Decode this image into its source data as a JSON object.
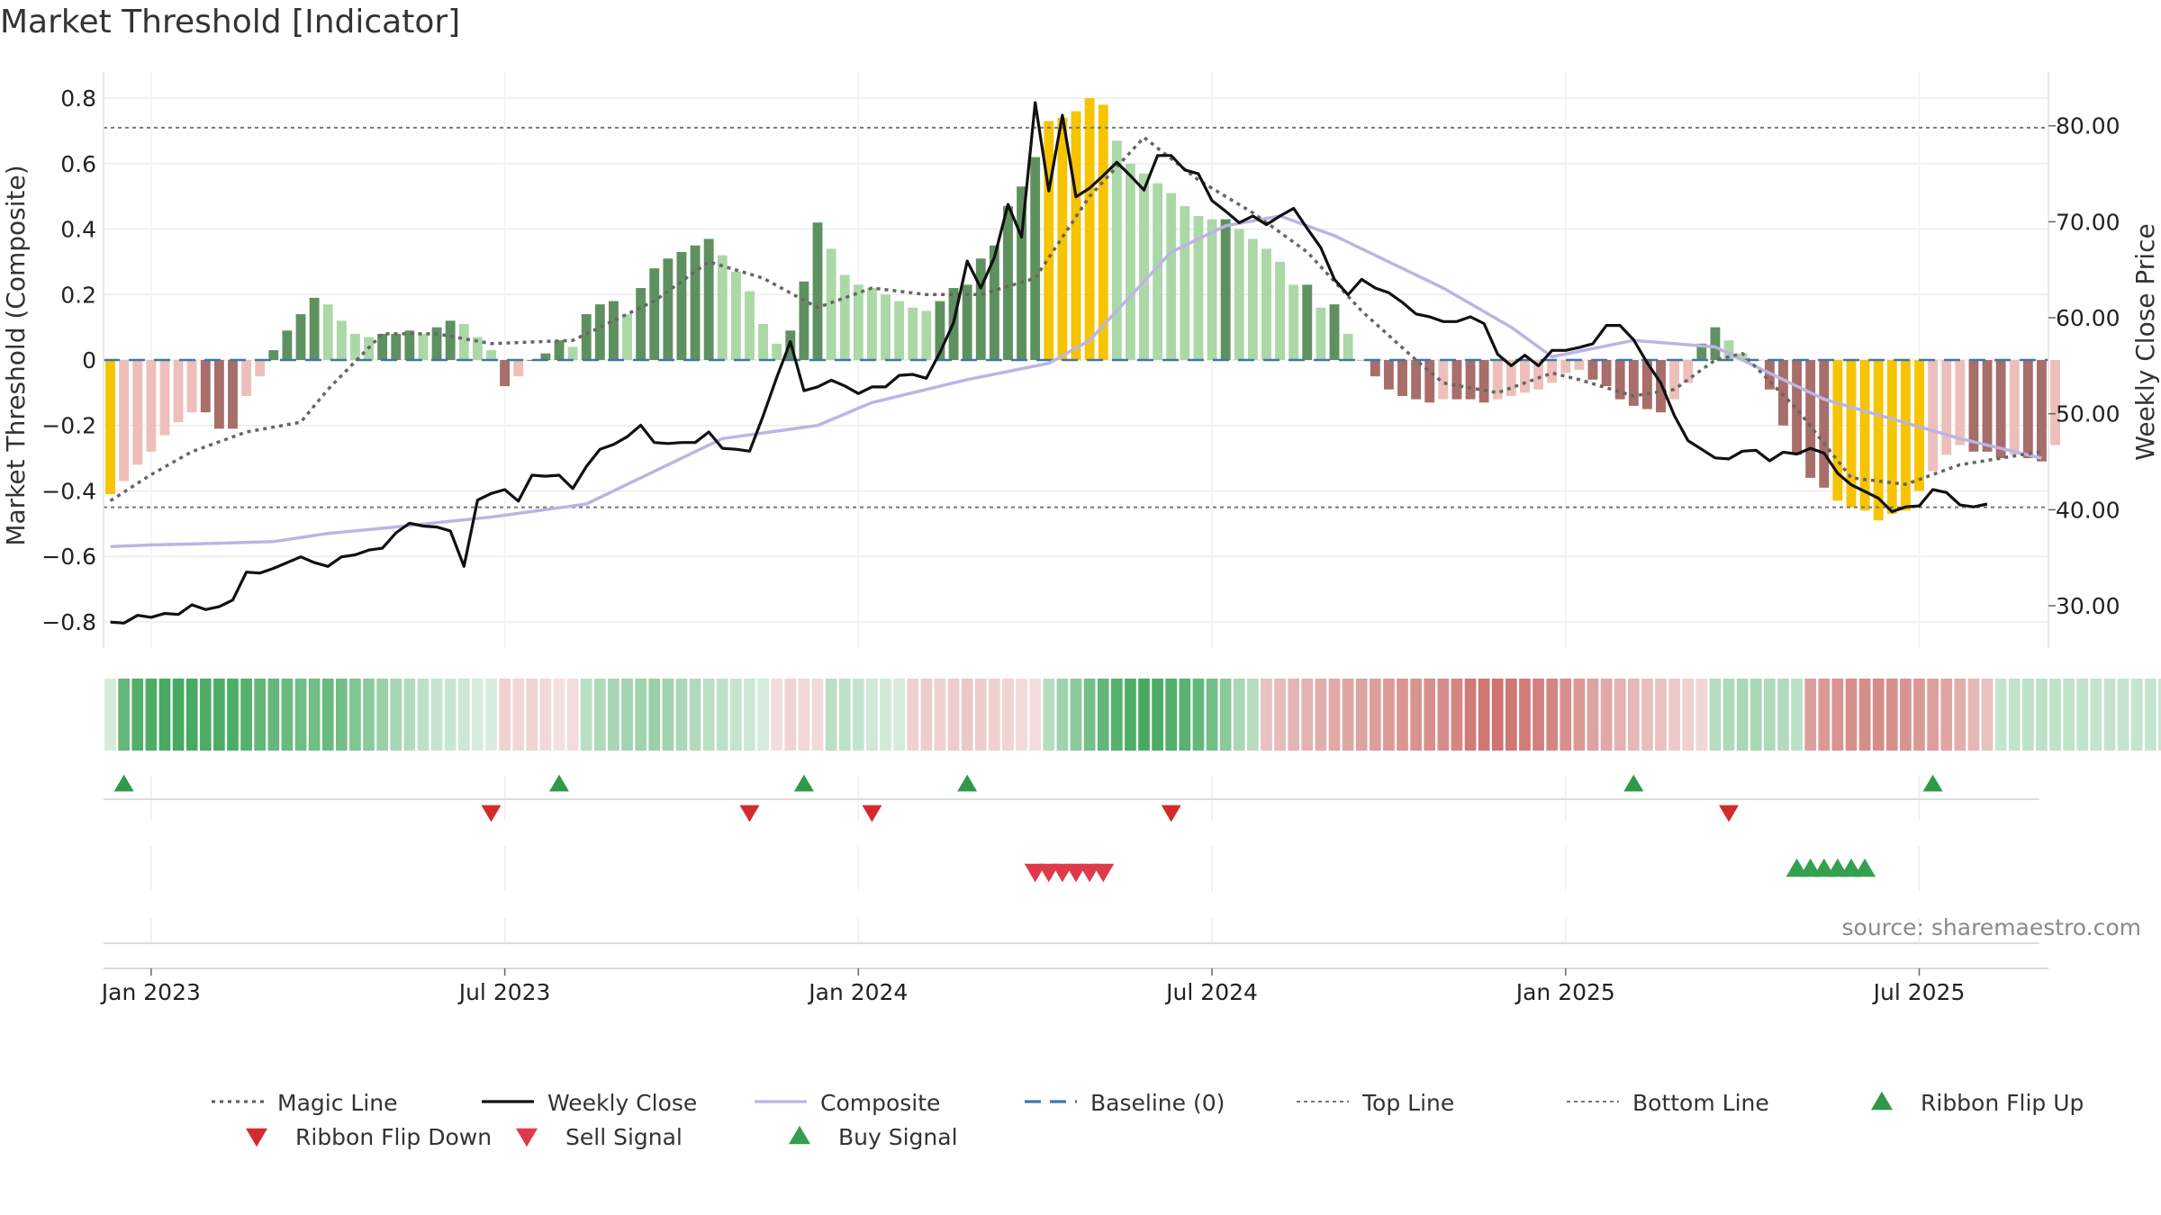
{
  "title": "Market Threshold [Indicator]",
  "source_text": "source: sharemaestro.com",
  "colors": {
    "bull_strong": "#5f9160",
    "bull_weak": "#acd8a7",
    "bear_strong": "#a86e6a",
    "bear_weak": "#eebfba",
    "extreme": "#f6c400",
    "magic": "#666666",
    "close": "#111111",
    "composite": "#bbb5e4",
    "baseline": "#3d78a8",
    "threshold": "#777777",
    "up_marker": "#2e9a48",
    "down_marker": "#d32b2b",
    "sell_marker": "#df3a4a",
    "buy_marker": "#34a04f"
  },
  "chart_data": {
    "type": "bar",
    "title": "Market Threshold [Indicator]",
    "ylabel_left": "Market Threshold (Composite)",
    "ylabel_right": "Weekly Close Price",
    "ylim_left": [
      -0.88,
      0.88
    ],
    "ylim_right": [
      25.6,
      85.6
    ],
    "left_ticks": [
      "0.8",
      "0.6",
      "0.4",
      "0.2",
      "0",
      "−0.2",
      "−0.4",
      "−0.6",
      "−0.8"
    ],
    "left_tick_values": [
      0.8,
      0.6,
      0.4,
      0.2,
      0,
      -0.2,
      -0.4,
      -0.6,
      -0.8
    ],
    "right_ticks": [
      "80.00",
      "70.00",
      "60.00",
      "50.00",
      "40.00",
      "30.00"
    ],
    "right_tick_values": [
      80,
      70,
      60,
      50,
      40,
      30
    ],
    "x_ticks": [
      "Jan 2023",
      "Jul 2023",
      "Jan 2024",
      "Jul 2024",
      "Jan 2025",
      "Jul 2025"
    ],
    "x_tick_weeks": [
      3,
      29,
      55,
      81,
      107,
      133
    ],
    "n_weeks": 143,
    "top_line": 0.71,
    "bottom_line": -0.45,
    "baseline": 0,
    "composite_weeks": [
      0,
      3,
      8,
      12,
      16,
      21,
      28,
      35,
      45,
      52,
      56,
      63,
      69,
      72,
      78,
      82,
      86,
      90,
      94,
      98,
      103,
      106,
      112,
      118,
      121,
      126,
      136,
      142
    ],
    "composite_values": [
      -0.57,
      -0.565,
      -0.56,
      -0.555,
      -0.53,
      -0.51,
      -0.48,
      -0.44,
      -0.24,
      -0.2,
      -0.13,
      -0.06,
      -0.01,
      0.06,
      0.33,
      0.41,
      0.44,
      0.38,
      0.3,
      0.22,
      0.1,
      0.01,
      0.06,
      0.04,
      -0.02,
      -0.12,
      -0.24,
      -0.3
    ],
    "magic_weeks": [
      0,
      3,
      6,
      10,
      14,
      16,
      20,
      24,
      28,
      34,
      40,
      44,
      48,
      52,
      56,
      60,
      64,
      68,
      72,
      76,
      80,
      84,
      88,
      92,
      96,
      98,
      102,
      106,
      108,
      112,
      115,
      118,
      120,
      124,
      128,
      132,
      136,
      142
    ],
    "magic_values": [
      -0.43,
      -0.35,
      -0.28,
      -0.22,
      -0.19,
      -0.09,
      0.08,
      0.08,
      0.05,
      0.06,
      0.18,
      0.3,
      0.25,
      0.16,
      0.22,
      0.2,
      0.2,
      0.25,
      0.5,
      0.68,
      0.55,
      0.45,
      0.33,
      0.15,
      0.0,
      -0.07,
      -0.1,
      -0.04,
      -0.06,
      -0.11,
      -0.09,
      0.0,
      0.02,
      -0.15,
      -0.36,
      -0.38,
      -0.32,
      -0.28
    ],
    "weekly_close_weeks": [
      0,
      1,
      2,
      3,
      4,
      5,
      6,
      7,
      8,
      9,
      10,
      11,
      12,
      13,
      14,
      15,
      16,
      17,
      18,
      19,
      20,
      21,
      22,
      23,
      24,
      25,
      26,
      27,
      28,
      29,
      30,
      31,
      32,
      33,
      34,
      35,
      36,
      37,
      38,
      39,
      40,
      41,
      42,
      43,
      44,
      45,
      46,
      47,
      48,
      49,
      50,
      51,
      52,
      53,
      54,
      55,
      56,
      57,
      58,
      59,
      60,
      61,
      62,
      63,
      64,
      65,
      66,
      67,
      68,
      69,
      70,
      71,
      72,
      73,
      74,
      75,
      76,
      77,
      78,
      79,
      80,
      81,
      82,
      83,
      84,
      85,
      86,
      87,
      88,
      89,
      90,
      91,
      92,
      93,
      94,
      95,
      96,
      97,
      98,
      99,
      100,
      101,
      102,
      103,
      104,
      105,
      106,
      107,
      108,
      109,
      110,
      111,
      112,
      113,
      114,
      115,
      116,
      117,
      118,
      119,
      120,
      121,
      122,
      123,
      124,
      125,
      126,
      127,
      128,
      129,
      130,
      131,
      132,
      133,
      134,
      135,
      136,
      137,
      138,
      139,
      140,
      141,
      142
    ],
    "weekly_close_values": [
      28.3,
      28.2,
      29.0,
      28.8,
      29.2,
      29.1,
      30.1,
      29.6,
      29.9,
      30.6,
      33.5,
      33.4,
      33.9,
      34.5,
      35.1,
      34.5,
      34.1,
      35.1,
      35.3,
      35.8,
      36.0,
      37.6,
      38.6,
      38.3,
      38.2,
      37.8,
      34.1,
      41.0,
      41.7,
      42.1,
      40.9,
      43.6,
      43.5,
      43.6,
      42.2,
      44.5,
      46.3,
      46.8,
      47.6,
      48.8,
      47.0,
      46.9,
      47.0,
      47.0,
      48.1,
      46.4,
      46.3,
      46.1,
      49.8,
      53.8,
      57.5,
      52.4,
      52.8,
      53.5,
      52.9,
      52.1,
      52.8,
      52.8,
      54.0,
      54.1,
      53.7,
      56.4,
      59.5,
      65.9,
      63.1,
      66.3,
      71.8,
      68.4,
      82.4,
      73.2,
      81.1,
      72.6,
      73.5,
      74.8,
      76.2,
      74.8,
      73.3,
      76.9,
      76.9,
      75.4,
      75.0,
      72.2,
      71.1,
      69.9,
      70.6,
      69.7,
      70.6,
      71.4,
      69.3,
      67.3,
      64.0,
      62.4,
      64.0,
      63.1,
      62.6,
      61.6,
      60.4,
      60.1,
      59.6,
      59.6,
      60.1,
      59.4,
      56.2,
      55.0,
      56.1,
      55.0,
      56.6,
      56.6,
      56.9,
      57.3,
      59.2,
      59.2,
      57.7,
      55.3,
      53.2,
      49.8,
      47.2,
      46.3,
      45.4,
      45.3,
      46.1,
      46.2,
      45.1,
      46.0,
      45.8,
      46.4,
      45.9,
      43.8,
      42.6,
      41.9,
      41.2,
      39.8,
      40.3,
      40.4,
      42.1,
      41.8,
      40.5,
      40.3,
      40.6
    ],
    "composite_bars": [
      -0.41,
      -0.37,
      -0.32,
      -0.28,
      -0.23,
      -0.19,
      -0.16,
      -0.16,
      -0.21,
      -0.21,
      -0.11,
      -0.05,
      0.03,
      0.09,
      0.14,
      0.19,
      0.17,
      0.12,
      0.08,
      0.07,
      0.08,
      0.08,
      0.09,
      0.08,
      0.1,
      0.12,
      0.11,
      0.07,
      0.03,
      -0.08,
      -0.05,
      0.0,
      0.02,
      0.06,
      0.04,
      0.14,
      0.17,
      0.18,
      0.14,
      0.22,
      0.28,
      0.31,
      0.33,
      0.35,
      0.37,
      0.32,
      0.27,
      0.21,
      0.11,
      0.05,
      0.09,
      0.24,
      0.42,
      0.34,
      0.26,
      0.23,
      0.22,
      0.2,
      0.18,
      0.16,
      0.15,
      0.18,
      0.22,
      0.23,
      0.31,
      0.35,
      0.47,
      0.53,
      0.62,
      0.73,
      0.74,
      0.76,
      0.8,
      0.78,
      0.67,
      0.6,
      0.57,
      0.54,
      0.51,
      0.47,
      0.44,
      0.43,
      0.43,
      0.4,
      0.37,
      0.34,
      0.3,
      0.23,
      0.23,
      0.16,
      0.17,
      0.08,
      0.0,
      -0.05,
      -0.09,
      -0.11,
      -0.12,
      -0.13,
      -0.12,
      -0.12,
      -0.12,
      -0.13,
      -0.12,
      -0.11,
      -0.1,
      -0.09,
      -0.07,
      -0.04,
      -0.03,
      -0.06,
      -0.08,
      -0.12,
      -0.14,
      -0.15,
      -0.16,
      -0.12,
      -0.07,
      0.05,
      0.1,
      0.06,
      0.02,
      0.0,
      -0.09,
      -0.2,
      -0.29,
      -0.36,
      -0.39,
      -0.43,
      -0.45,
      -0.46,
      -0.49,
      -0.47,
      -0.46,
      -0.4,
      -0.34,
      -0.29,
      -0.26,
      -0.28,
      -0.28,
      -0.3,
      -0.29,
      -0.3,
      -0.31,
      -0.26
    ],
    "ribbon_fills": [
      0.22,
      0.8,
      0.9,
      0.92,
      0.95,
      0.95,
      0.95,
      0.93,
      0.93,
      0.92,
      0.88,
      0.82,
      0.8,
      0.78,
      0.74,
      0.74,
      0.78,
      0.72,
      0.66,
      0.6,
      0.52,
      0.46,
      0.4,
      0.34,
      0.3,
      0.28,
      0.26,
      0.22,
      0.2,
      -0.3,
      -0.25,
      -0.28,
      -0.24,
      -0.2,
      -0.22,
      0.36,
      0.42,
      0.46,
      0.48,
      0.5,
      0.52,
      0.5,
      0.44,
      0.4,
      0.36,
      0.34,
      0.3,
      0.26,
      0.22,
      -0.22,
      -0.28,
      -0.26,
      -0.24,
      0.36,
      0.34,
      0.3,
      0.25,
      0.24,
      0.22,
      -0.3,
      -0.32,
      -0.3,
      -0.33,
      -0.35,
      -0.32,
      -0.3,
      -0.28,
      -0.24,
      -0.22,
      0.38,
      0.5,
      0.6,
      0.72,
      0.82,
      0.88,
      0.92,
      0.95,
      0.93,
      0.9,
      0.86,
      0.8,
      0.72,
      0.6,
      0.44,
      0.38,
      -0.4,
      -0.44,
      -0.48,
      -0.5,
      -0.52,
      -0.55,
      -0.58,
      -0.6,
      -0.62,
      -0.65,
      -0.68,
      -0.7,
      -0.72,
      -0.74,
      -0.78,
      -0.85,
      -0.88,
      -0.9,
      -0.88,
      -0.85,
      -0.82,
      -0.78,
      -0.72,
      -0.66,
      -0.6,
      -0.56,
      -0.5,
      -0.46,
      -0.42,
      -0.4,
      -0.34,
      -0.3,
      -0.26,
      0.38,
      0.42,
      0.44,
      0.44,
      0.42,
      0.4,
      0.36,
      -0.62,
      -0.66,
      -0.7,
      -0.72,
      -0.74,
      -0.74,
      -0.72,
      -0.7,
      -0.66,
      -0.62,
      -0.58,
      -0.52,
      -0.46,
      -0.4,
      0.3,
      0.32,
      0.34,
      0.34,
      0.33,
      0.32,
      0.32,
      0.31,
      0.31,
      0.3,
      0.3,
      0.3,
      0.28,
      0.26
    ],
    "ribbon_flip_up_weeks": [
      1,
      33,
      51,
      63,
      112,
      134
    ],
    "ribbon_flip_down_weeks": [
      28,
      47,
      56,
      78,
      119
    ],
    "sell_signal_weeks": [
      68,
      69,
      70,
      71,
      72,
      73
    ],
    "buy_signal_weeks": [
      124,
      125,
      126,
      127,
      128,
      129
    ],
    "legend": [
      {
        "label": "Magic Line",
        "kind": "dotted-line",
        "color": "#666666"
      },
      {
        "label": "Weekly Close",
        "kind": "solid-line",
        "color": "#111111"
      },
      {
        "label": "Composite",
        "kind": "solid-line",
        "color": "#bbb5e4"
      },
      {
        "label": "Baseline (0)",
        "kind": "dashed-line",
        "color": "#3d78a8"
      },
      {
        "label": "Top Line",
        "kind": "thin-dotted-line",
        "color": "#777777"
      },
      {
        "label": "Bottom Line",
        "kind": "thin-dotted-line",
        "color": "#777777"
      },
      {
        "label": "Ribbon Flip Up",
        "kind": "triangle-up",
        "color": "#2e9a48"
      },
      {
        "label": "Ribbon Flip Down",
        "kind": "triangle-down",
        "color": "#d32b2b"
      },
      {
        "label": "Sell Signal",
        "kind": "triangle-down",
        "color": "#df3a4a"
      },
      {
        "label": "Buy Signal",
        "kind": "triangle-up",
        "color": "#34a04f"
      }
    ],
    "legend_position": "bottom",
    "grid": true
  }
}
